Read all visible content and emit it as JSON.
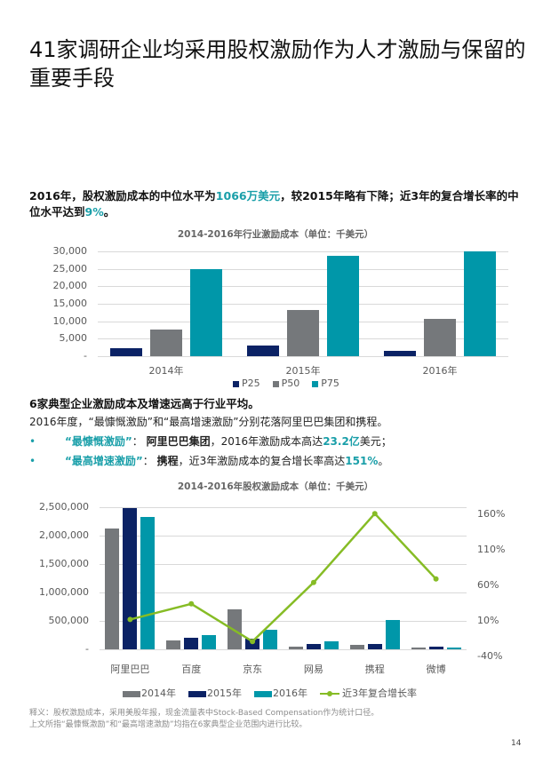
{
  "page": {
    "title": "41家调研企业均采用股权激励作为人才激励与保留的重要手段",
    "page_number": "14"
  },
  "lead": {
    "p1": "2016年，股权激励成本的中位水平为",
    "v1": "1066万美元",
    "p2": "，较2015年略有下降；近3年的复合增长率的中位水平达到",
    "v2": "9%",
    "p3": "。"
  },
  "section2": {
    "heading": "6家典型企业激励成本及增速远高于行业平均。",
    "intro": "2016年度，“最慷慨激励”和“最高增速激励”分别花落阿里巴巴集团和携程。",
    "bullets": [
      {
        "dot": "•",
        "label": "“最慷慨激励”",
        "sep": "：",
        "company": "阿里巴巴集团",
        "text": "，2016年激励成本高达",
        "value": "23.2亿",
        "tail": "美元；"
      },
      {
        "dot": "•",
        "label": "“最高增速激励”",
        "sep": "：",
        "company": "携程",
        "text": "，近3年激励成本的复合增长率高达",
        "value": "151%",
        "tail": "。"
      }
    ]
  },
  "notes": {
    "line1": "释义：股权激励成本，采用美股年报，现金流量表中Stock-Based Compensation作为统计口径。",
    "line2": "上文所指“最慷慨激励”和“最高增速激励”均指在6家典型企业范围内进行比较。"
  },
  "colors": {
    "navy": "#0b2265",
    "gray": "#75787b",
    "teal": "#0097a9",
    "green": "#86bc25",
    "accent_text": "#1a9fa9"
  },
  "chart_data": [
    {
      "type": "bar",
      "title": "2014-2016年行业激励成本（单位：千美元）",
      "categories": [
        "2014年",
        "2015年",
        "2016年"
      ],
      "series": [
        {
          "name": "P25",
          "values": [
            2200,
            3000,
            1600
          ]
        },
        {
          "name": "P50",
          "values": [
            7700,
            13300,
            10700
          ]
        },
        {
          "name": "P75",
          "values": [
            25000,
            28800,
            30000
          ]
        }
      ],
      "yticks": [
        "30,000",
        "25,000",
        "20,000",
        "15,000",
        "10,000",
        "5,000",
        "-"
      ],
      "ylim": [
        0,
        30000
      ],
      "xlabel": "",
      "ylabel": "",
      "grid": true,
      "legend_position": "bottom"
    },
    {
      "type": "bar",
      "title": "2014-2016年股权激励成本（单位：千美元）",
      "categories": [
        "阿里巴巴",
        "百度",
        "京东",
        "网易",
        "携程",
        "微博"
      ],
      "series": [
        {
          "name": "2014年",
          "values": [
            2130000,
            150000,
            700000,
            50000,
            80000,
            25000
          ]
        },
        {
          "name": "2015年",
          "values": [
            2480000,
            210000,
            180000,
            100000,
            100000,
            50000
          ]
        },
        {
          "name": "2016年",
          "values": [
            2330000,
            250000,
            340000,
            140000,
            510000,
            35000
          ]
        },
        {
          "name": "近3年复合增长率",
          "type": "line",
          "axis": "right",
          "values": [
            2,
            24,
            -29,
            54,
            151,
            59
          ]
        }
      ],
      "yticks": [
        "2,500,000",
        "2,000,000",
        "1,500,000",
        "1,000,000",
        "500,000",
        "-"
      ],
      "yticks_right": [
        "160%",
        "110%",
        "60%",
        "10%",
        "-40%"
      ],
      "ylim": [
        0,
        2500000
      ],
      "ylim_right": [
        -40,
        160
      ],
      "grid": true,
      "legend_position": "bottom"
    }
  ]
}
